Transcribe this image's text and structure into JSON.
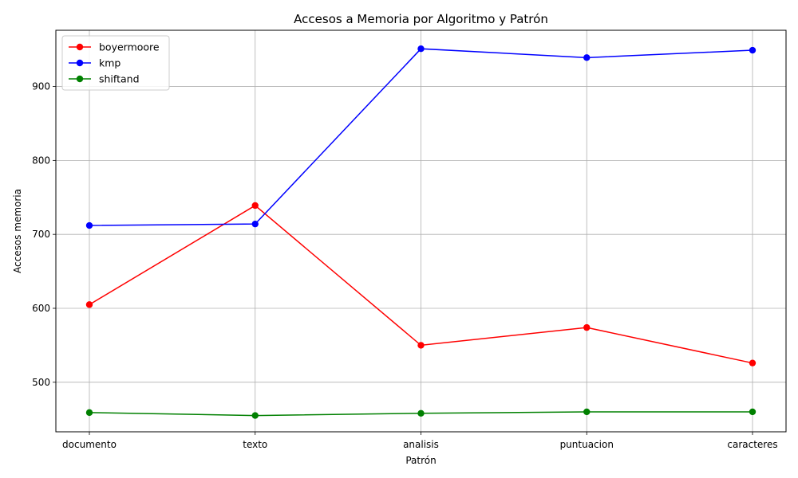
{
  "chart_data": {
    "type": "line",
    "title": "Accesos a Memoria por Algoritmo y Patrón",
    "xlabel": "Patrón",
    "ylabel": "Accesos memoria",
    "categories": [
      "documento",
      "texto",
      "analisis",
      "puntuacion",
      "caracteres"
    ],
    "ylim": [
      433,
      976
    ],
    "yticks": [
      500,
      600,
      700,
      800,
      900
    ],
    "grid": true,
    "legend_position": "top-left",
    "series": [
      {
        "name": "boyermoore",
        "color": "#ff0000",
        "values": [
          605,
          739,
          550,
          574,
          526
        ]
      },
      {
        "name": "kmp",
        "color": "#0000ff",
        "values": [
          712,
          714,
          951,
          939,
          949
        ]
      },
      {
        "name": "shiftand",
        "color": "#008000",
        "values": [
          459,
          455,
          458,
          460,
          460
        ]
      }
    ]
  }
}
